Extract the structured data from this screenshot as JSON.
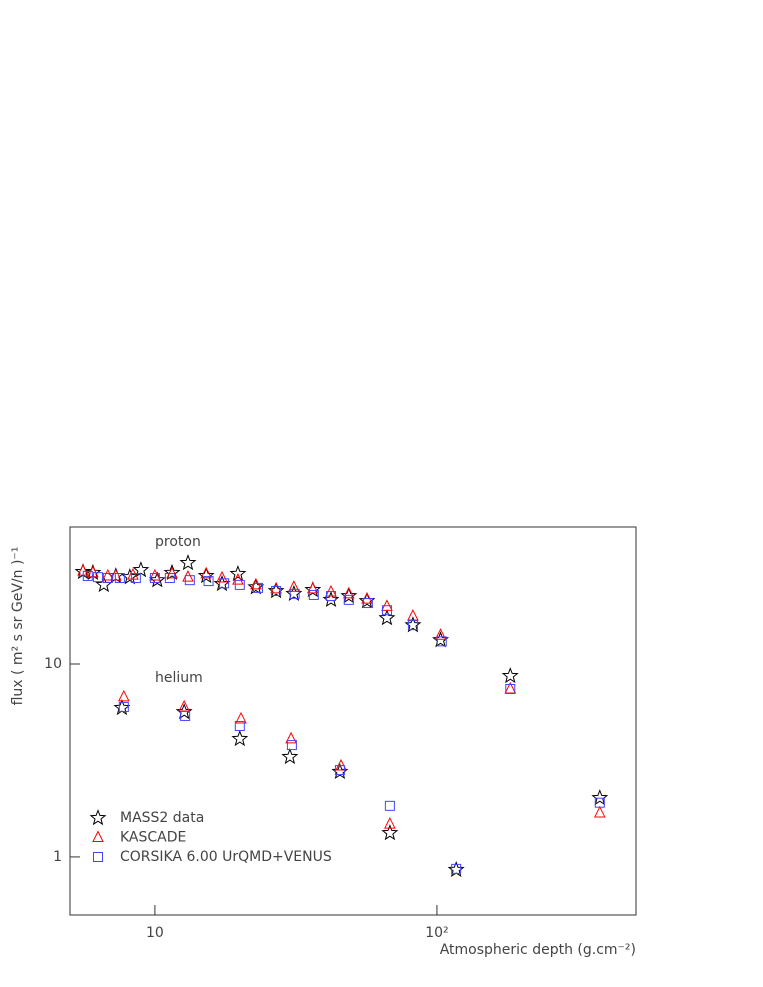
{
  "chart_data": {
    "type": "scatter",
    "x_label": "Atmospheric depth (g.cm⁻²)",
    "y_label": "flux ( m² s sr GeV/n )⁻¹",
    "annotations": [
      "proton",
      "helium"
    ],
    "log_x": true,
    "log_y": true,
    "xlim": [
      5,
      508
    ],
    "ylim": [
      0.5,
      51.3
    ],
    "xticks": [
      10,
      {
        "value": 100,
        "label": "10²"
      }
    ],
    "yticks": [
      1,
      10
    ],
    "series": [
      {
        "name": "MASS2 data",
        "color": "#000000",
        "marker": "star",
        "x": [
          5.56,
          6.03,
          6.59,
          7.27,
          8.15,
          8.92,
          10.2,
          11.5,
          13.1,
          15.2,
          17.3,
          19.7,
          22.8,
          26.9,
          31.1,
          36.3,
          42.1,
          48.7,
          56.5,
          66.5,
          82.2,
          103,
          182,
          378,
          7.64,
          12.7,
          20.0,
          30.1,
          45.3,
          68.1,
          117
        ],
        "values": [
          30.0,
          29.7,
          25.7,
          28.6,
          28.2,
          30.7,
          27.2,
          29.7,
          33.4,
          28.6,
          26.0,
          29.3,
          25.0,
          23.9,
          23.1,
          24.2,
          21.5,
          22.5,
          21.2,
          17.3,
          15.9,
          13.3,
          8.67,
          2.02,
          5.92,
          5.64,
          4.09,
          3.3,
          2.76,
          1.33,
          0.857
        ]
      },
      {
        "name": "KASCADE",
        "color": "#ff0000",
        "marker": "triangle",
        "x": [
          5.56,
          6.03,
          6.81,
          7.27,
          8.36,
          10,
          11.5,
          13.1,
          15.2,
          17.3,
          19.7,
          22.8,
          26.9,
          31.1,
          36.3,
          42.1,
          48.7,
          56.5,
          66.5,
          82.2,
          103,
          182,
          378,
          7.76,
          12.7,
          20.2,
          30.4,
          45.7,
          68.1
        ],
        "values": [
          30.3,
          29.7,
          28.6,
          28.6,
          28.9,
          28.6,
          29.3,
          28.2,
          29.3,
          27.9,
          27.2,
          25.7,
          24.5,
          25.0,
          24.5,
          23.6,
          23.1,
          21.7,
          19.9,
          17.7,
          14.1,
          7.42,
          1.69,
          6.75,
          5.99,
          5.19,
          4.09,
          2.96,
          1.48
        ]
      },
      {
        "name": "CORSIKA 6.00 UrQMD+VENUS",
        "color": "#4444ff",
        "marker": "square",
        "x": [
          5.78,
          6.28,
          6.81,
          7.51,
          8.56,
          10,
          11.3,
          13.3,
          15.5,
          17.6,
          20.0,
          23.2,
          26.9,
          31.3,
          36.6,
          42.1,
          48.7,
          56.9,
          66.5,
          82.2,
          104,
          182,
          378,
          7.76,
          12.8,
          20.0,
          30.6,
          45.3,
          68.1,
          117
        ],
        "values": [
          28.6,
          28.2,
          27.9,
          27.9,
          27.9,
          27.9,
          27.9,
          27.2,
          26.9,
          26.2,
          25.7,
          24.8,
          23.9,
          23.1,
          22.8,
          22.5,
          21.5,
          20.7,
          19.0,
          15.9,
          13.1,
          7.42,
          1.91,
          5.99,
          5.38,
          4.77,
          3.8,
          2.82,
          1.84,
          0.867
        ]
      }
    ]
  }
}
